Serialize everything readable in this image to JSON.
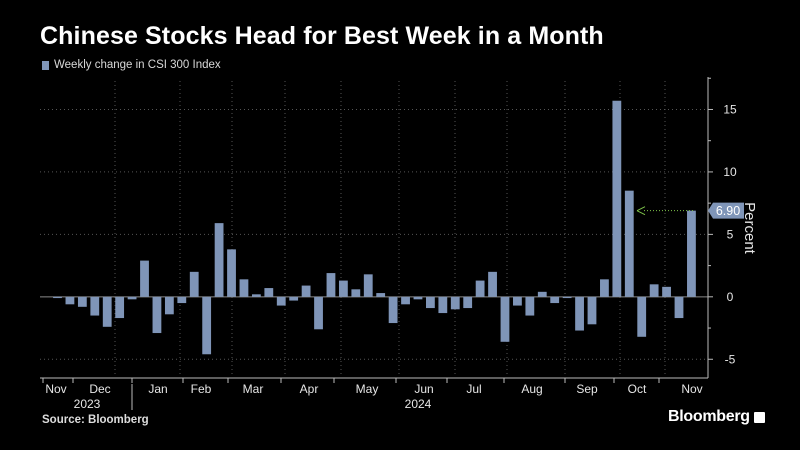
{
  "header": {
    "title": "Chinese Stocks Head for Best Week in a Month"
  },
  "legend": {
    "label": "Weekly change in CSI 300 Index",
    "color": "#7f95b8"
  },
  "footer": {
    "source": "Source: Bloomberg",
    "brand": "Bloomberg"
  },
  "chart_data": {
    "type": "bar",
    "series": [
      {
        "name": "Weekly change in CSI 300 Index",
        "values": [
          -0.1,
          -0.6,
          -0.8,
          -1.5,
          -2.4,
          -1.7,
          -0.2,
          2.9,
          -2.9,
          -1.4,
          -0.5,
          2.0,
          -4.6,
          5.9,
          3.8,
          1.4,
          0.2,
          0.7,
          -0.7,
          -0.3,
          0.9,
          -2.6,
          1.9,
          1.3,
          0.6,
          1.8,
          0.3,
          -2.1,
          -0.6,
          -0.2,
          -0.9,
          -1.3,
          -1.0,
          -0.9,
          1.3,
          2.0,
          -3.6,
          -0.7,
          -1.5,
          0.4,
          -0.5,
          -0.1,
          -2.7,
          -2.2,
          1.4,
          15.7,
          8.5,
          -3.2,
          1.0,
          0.8,
          -1.7,
          6.9
        ]
      }
    ],
    "x_month_labels": [
      "Nov",
      "Dec",
      "Jan",
      "Feb",
      "Mar",
      "Apr",
      "May",
      "Jun",
      "Jul",
      "Aug",
      "Sep",
      "Oct",
      "Nov"
    ],
    "x_year_labels": [
      "2023",
      "2024"
    ],
    "y_ticks": [
      15,
      10,
      5,
      0,
      -5
    ],
    "ylim": [
      -6.5,
      17.6
    ],
    "ylabel": "Percent",
    "annotation": {
      "label": "6.90",
      "value": 6.9,
      "color": "#7ec34a"
    },
    "grid": true,
    "legend_position": "top-left",
    "bar_color": "#7f95b8"
  }
}
